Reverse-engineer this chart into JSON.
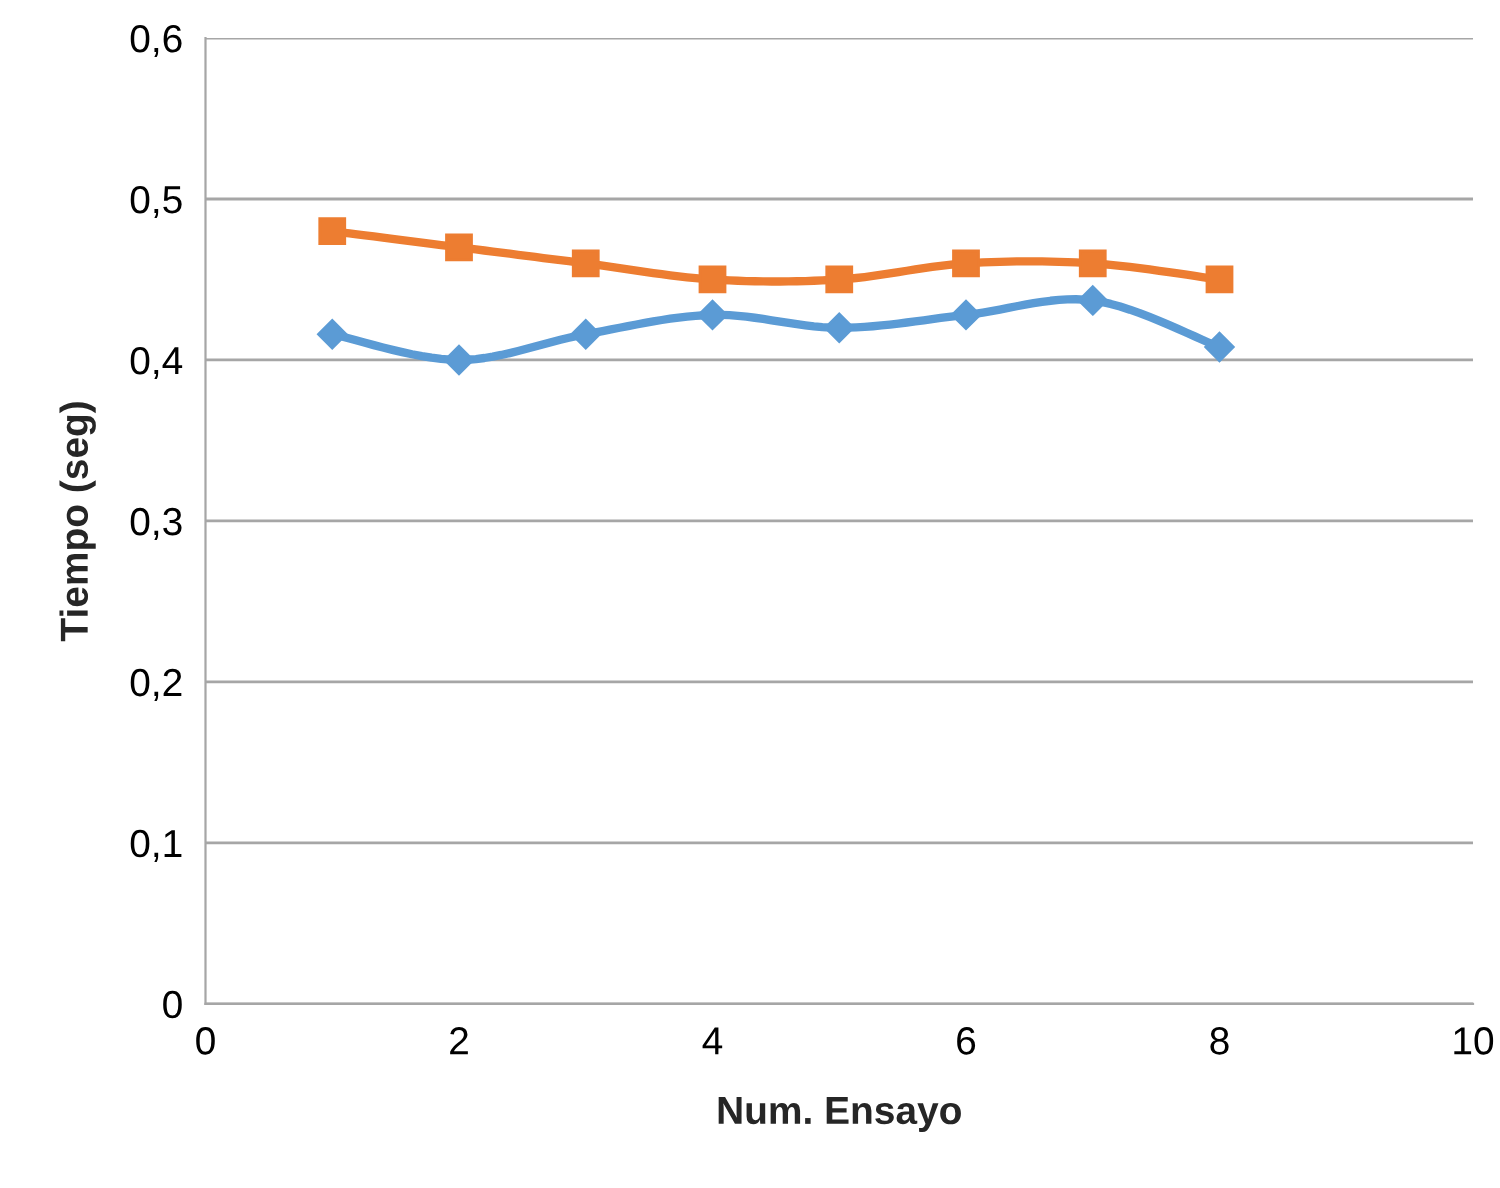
{
  "chart_data": {
    "type": "line",
    "xlabel": "Num. Ensayo",
    "ylabel": "Tiempo (seg)",
    "x": [
      1,
      2,
      3,
      4,
      5,
      6,
      7,
      8
    ],
    "series": [
      {
        "color": "#5b9bd5",
        "marker": "diamond",
        "values": [
          0.416,
          0.4,
          0.416,
          0.428,
          0.42,
          0.428,
          0.437,
          0.408
        ]
      },
      {
        "color": "#ed7d31",
        "marker": "square",
        "values": [
          0.48,
          0.47,
          0.46,
          0.45,
          0.45,
          0.46,
          0.46,
          0.45
        ]
      }
    ],
    "xlim": [
      0,
      10
    ],
    "xticks": [
      0,
      2,
      4,
      6,
      8,
      10
    ],
    "ylim": [
      0,
      0.6
    ],
    "yticks": [
      {
        "value": 0,
        "label": "0"
      },
      {
        "value": 0.1,
        "label": "0,1"
      },
      {
        "value": 0.2,
        "label": "0,2"
      },
      {
        "value": 0.3,
        "label": "0,3"
      },
      {
        "value": 0.4,
        "label": "0,4"
      },
      {
        "value": 0.5,
        "label": "0,5"
      },
      {
        "value": 0.6,
        "label": "0,6"
      }
    ],
    "grid": "y",
    "legend": false,
    "line_style": "solid"
  }
}
